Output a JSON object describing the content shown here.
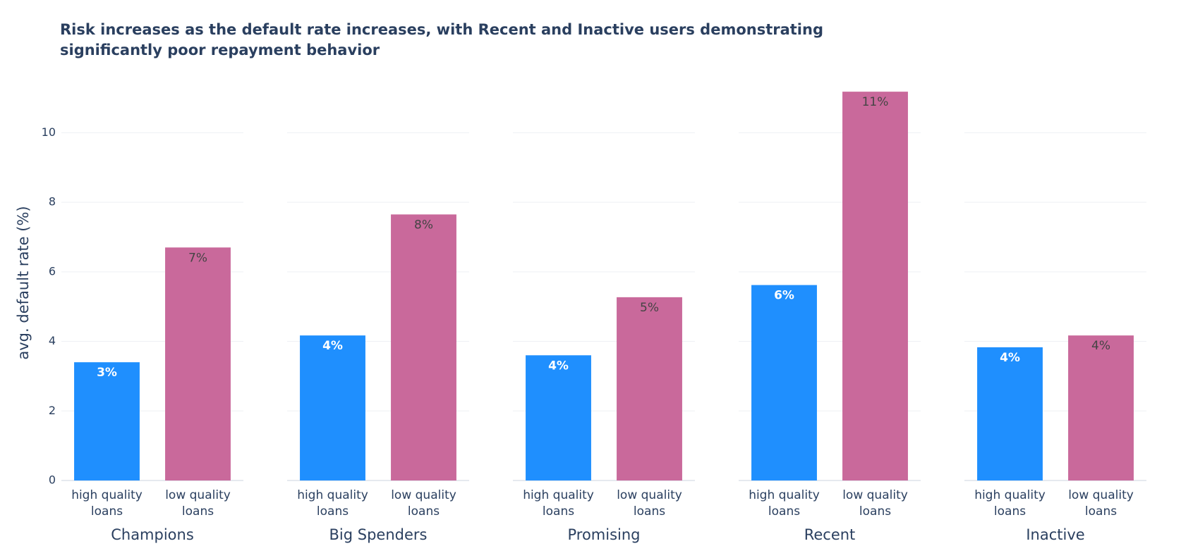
{
  "title": "Risk increases as the default rate increases, with Recent and Inactive users demonstrating significantly poor repayment behavior",
  "chart_data": [
    {
      "type": "bar",
      "title": "Champions",
      "ylabel": "avg. default rate (%)",
      "categories": [
        "high quality loans",
        "low quality loans"
      ],
      "values": [
        3.4,
        6.7
      ],
      "value_labels": [
        "3%",
        "7%"
      ],
      "colors": [
        "#1f8ffe",
        "#c9699b"
      ],
      "value_label_colors": [
        "#ffffff",
        "#444444"
      ],
      "ylim": [
        0,
        11.77
      ],
      "yticks": [
        0,
        2,
        4,
        6,
        8,
        10
      ],
      "grid": true
    },
    {
      "type": "bar",
      "title": "Big Spenders",
      "categories": [
        "high quality loans",
        "low quality loans"
      ],
      "values": [
        4.17,
        7.65
      ],
      "value_labels": [
        "4%",
        "8%"
      ],
      "colors": [
        "#1f8ffe",
        "#c9699b"
      ],
      "value_label_colors": [
        "#ffffff",
        "#444444"
      ],
      "ylim": [
        0,
        11.77
      ],
      "yticks": [
        0,
        2,
        4,
        6,
        8,
        10
      ],
      "grid": true
    },
    {
      "type": "bar",
      "title": "Promising",
      "categories": [
        "high quality loans",
        "low quality loans"
      ],
      "values": [
        3.6,
        5.27
      ],
      "value_labels": [
        "4%",
        "5%"
      ],
      "colors": [
        "#1f8ffe",
        "#c9699b"
      ],
      "value_label_colors": [
        "#ffffff",
        "#444444"
      ],
      "ylim": [
        0,
        11.77
      ],
      "yticks": [
        0,
        2,
        4,
        6,
        8,
        10
      ],
      "grid": true
    },
    {
      "type": "bar",
      "title": "Recent",
      "categories": [
        "high quality loans",
        "low quality loans"
      ],
      "values": [
        5.62,
        11.18
      ],
      "value_labels": [
        "6%",
        "11%"
      ],
      "colors": [
        "#1f8ffe",
        "#c9699b"
      ],
      "value_label_colors": [
        "#ffffff",
        "#444444"
      ],
      "ylim": [
        0,
        11.77
      ],
      "yticks": [
        0,
        2,
        4,
        6,
        8,
        10
      ],
      "grid": true
    },
    {
      "type": "bar",
      "title": "Inactive",
      "categories": [
        "high quality loans",
        "low quality loans"
      ],
      "values": [
        3.83,
        4.17
      ],
      "value_labels": [
        "4%",
        "4%"
      ],
      "colors": [
        "#1f8ffe",
        "#c9699b"
      ],
      "value_label_colors": [
        "#ffffff",
        "#444444"
      ],
      "ylim": [
        0,
        11.77
      ],
      "yticks": [
        0,
        2,
        4,
        6,
        8,
        10
      ],
      "grid": true
    }
  ]
}
